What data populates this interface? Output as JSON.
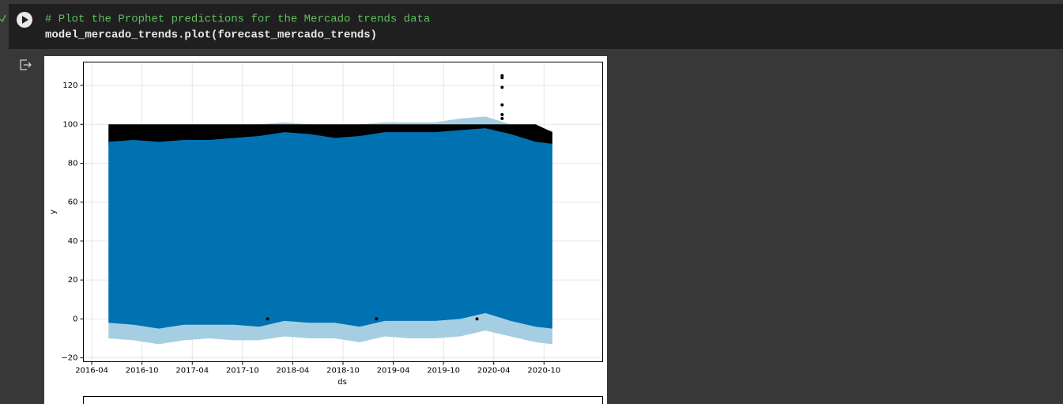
{
  "cell": {
    "code": [
      "# Plot the Prophet predictions for the Mercado trends data",
      "model_mercado_trends.plot(forecast_mercado_trends)"
    ]
  },
  "chart_data": {
    "type": "band",
    "xlabel": "ds",
    "ylabel": "y",
    "x": [
      "2016-06",
      "2016-09",
      "2016-12",
      "2017-03",
      "2017-06",
      "2017-09",
      "2017-12",
      "2018-03",
      "2018-06",
      "2018-09",
      "2018-12",
      "2019-03",
      "2019-06",
      "2019-09",
      "2019-12",
      "2020-03",
      "2020-06",
      "2020-09",
      "2020-11"
    ],
    "bands": [
      {
        "color": "#a6cee3",
        "upper": [
          98,
          99,
          98,
          99,
          99,
          99,
          100,
          101,
          100,
          99,
          100,
          101,
          101,
          101,
          103,
          104,
          100,
          96,
          97
        ],
        "lower": [
          -10,
          -11,
          -13,
          -11,
          -10,
          -11,
          -11,
          -9,
          -10,
          -10,
          -12,
          -9,
          -10,
          -10,
          -9,
          -6,
          -9,
          -12,
          -13
        ]
      },
      {
        "color": "#000000",
        "upper": [
          100,
          100,
          100,
          100,
          100,
          100,
          100,
          100,
          100,
          100,
          100,
          100,
          100,
          100,
          100,
          100,
          100,
          100,
          96
        ],
        "lower": [
          89,
          89,
          88,
          89,
          90,
          90,
          91,
          93,
          92,
          91,
          90,
          92,
          93,
          93,
          94,
          95,
          92,
          90,
          88
        ]
      },
      {
        "color": "#0072b2",
        "upper": [
          91,
          92,
          91,
          92,
          92,
          93,
          94,
          96,
          95,
          93,
          94,
          96,
          96,
          96,
          97,
          98,
          95,
          91,
          90
        ],
        "lower": [
          -2,
          -3,
          -5,
          -3,
          -3,
          -3,
          -4,
          -1,
          -2,
          -2,
          -4,
          -1,
          -1,
          -1,
          0,
          3,
          -1,
          -4,
          -5
        ]
      }
    ],
    "points": {
      "color": "#000000",
      "x": [
        "2018-01",
        "2019-02",
        "2020-02",
        "2020-05",
        "2020-05",
        "2020-05",
        "2020-05",
        "2020-05",
        "2020-05"
      ],
      "values": [
        0,
        0,
        0,
        125,
        124,
        119,
        110,
        105,
        103
      ]
    },
    "xlim": [
      "2016-03",
      "2021-05"
    ],
    "ylim": [
      -22,
      132
    ],
    "xticks": [
      "2016-04",
      "2016-10",
      "2017-04",
      "2017-10",
      "2018-04",
      "2018-10",
      "2019-04",
      "2019-10",
      "2020-04",
      "2020-10"
    ],
    "yticks": [
      {
        "value": -20,
        "label": "−20"
      },
      0,
      20,
      40,
      60,
      80,
      100,
      120
    ],
    "grid": true
  }
}
